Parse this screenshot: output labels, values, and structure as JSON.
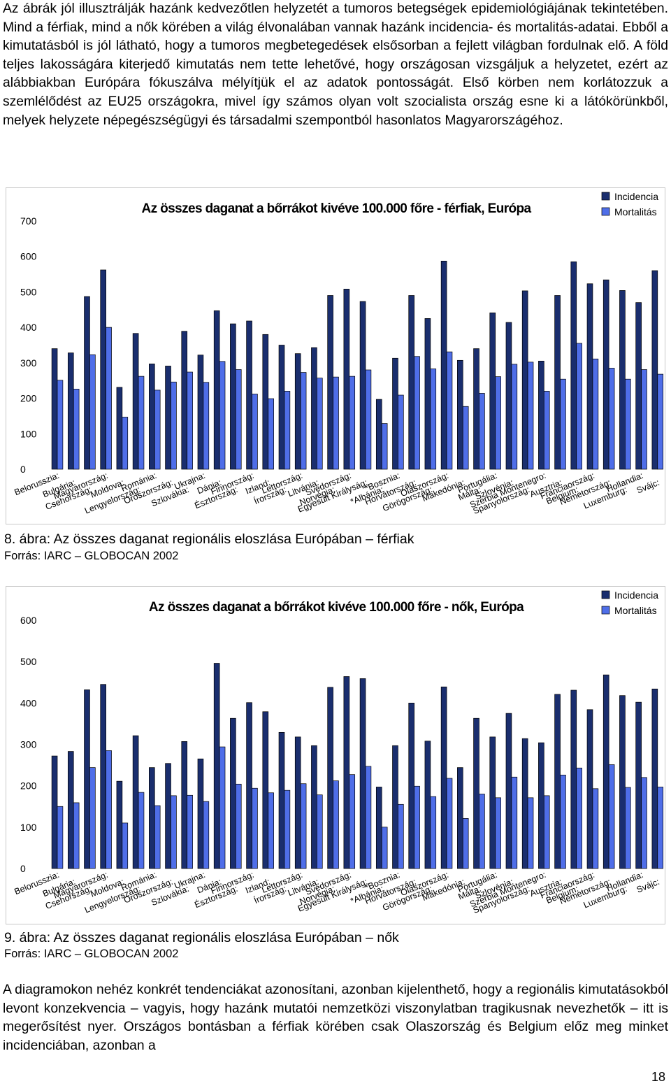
{
  "paragraph_top": "Az ábrák jól illusztrálják hazánk kedvezőtlen helyzetét a tumoros betegségek epidemiológiájának tekintetében. Mind a férfiak, mind a nők körében a világ élvonalában vannak hazánk incidencia- és mortalitás-adatai. Ebből a kimutatásból is jól látható, hogy a tumoros megbetegedések elsősorban a fejlett világban fordulnak elő. A föld teljes lakosságára kiterjedő kimutatás nem tette lehetővé, hogy országosan vizsgáljuk a helyzetet, ezért az alábbiakban Európára fókuszálva mélyítjük el az adatok pontosságát. Első körben nem korlátozzuk a szemlélődést az EU25 országokra, mivel így számos olyan volt szocialista ország esne ki a látókörünkből, melyek helyzete népegészségügyi és társadalmi szempontból hasonlatos Magyarországéhoz.",
  "figure1": {
    "caption": "8. ábra: Az összes daganat regionális eloszlása Európában – férfiak",
    "source": "Forrás: IARC – GLOBOCAN 2002"
  },
  "figure2": {
    "caption": "9. ábra: Az összes daganat regionális eloszlása Európában – nők",
    "source": "Forrás: IARC – GLOBOCAN 2002"
  },
  "paragraph_bottom": "A diagramokon nehéz konkrét tendenciákat azonosítani, azonban kijelenthető, hogy a regionális kimutatásokból levont konzekvencia – vagyis, hogy hazánk mutatói nemzetközi viszonylatban tragikusnak nevezhetők – itt is megerősítést nyer. Országos bontásban a férfiak körében csak Olaszország és Belgium előz meg minket incidenciában, azonban a",
  "page_number": "18",
  "colors": {
    "incidence": "#1a2e6e",
    "mortality": "#4f6ee8"
  },
  "chart_data": [
    {
      "type": "bar",
      "title": "Az összes daganat a bőrrákot kivéve 100.000 főre - férfiak, Európa",
      "categories": [
        "Belorusszia:",
        "Bulgária:",
        "Csehország:",
        "Magyarország:",
        "Moldova:",
        "Lengyelország:",
        "Románia:",
        "Oroszország:",
        "Szlovákia:",
        "Ukrajna:",
        "Dánia:",
        "Észtország:",
        "Finnország:",
        "Izland:",
        "Írország:",
        "Lettország:",
        "Litvánia:",
        "Norvégia:",
        "Svédország:",
        "Egyesült Királyság:",
        "*Albánia:",
        "*Bosznia:",
        "Horvátország:",
        "Görögország:",
        "Olaszország:",
        "Makedónia:",
        "Málta:",
        "Portugália:",
        "Szlovénia:",
        "Spanyolország:",
        "Szerbia Montenegro:",
        "Ausztria:",
        "Belgium:",
        "Franciaország:",
        "Németország:",
        "Luxemburg:",
        "Hollandia:",
        "Svájc:"
      ],
      "series": [
        {
          "name": "Incidencia",
          "values": [
            340,
            328,
            487,
            562,
            231,
            383,
            297,
            291,
            389,
            322,
            447,
            410,
            418,
            380,
            350,
            326,
            343,
            490,
            508,
            473,
            197,
            313,
            490,
            425,
            587,
            307,
            340,
            441,
            414,
            503,
            305,
            490,
            585,
            523,
            534,
            504,
            470,
            560
          ]
        },
        {
          "name": "Mortalitás",
          "values": [
            251,
            226,
            323,
            400,
            147,
            262,
            223,
            246,
            274,
            245,
            304,
            281,
            212,
            199,
            220,
            273,
            257,
            260,
            262,
            280,
            129,
            209,
            318,
            283,
            331,
            177,
            214,
            261,
            296,
            302,
            220,
            254,
            355,
            311,
            285,
            254,
            281,
            268
          ]
        }
      ],
      "ylim": [
        0,
        700
      ],
      "yticks": [
        0,
        100,
        200,
        300,
        400,
        500,
        600,
        700
      ],
      "legend_position": "top-right",
      "grid": false
    },
    {
      "type": "bar",
      "title": "Az összes daganat a bőrrákot kivéve 100.000 főre - nők, Európa",
      "categories": [
        "Belorusszia:",
        "Bulgária:",
        "Csehország:",
        "Magyarország:",
        "Moldova:",
        "Lengyelország:",
        "Románia:",
        "Oroszország:",
        "Szlovákia:",
        "Ukrajna:",
        "Dánia:",
        "Észtország:",
        "Finnország:",
        "Izland:",
        "Írország:",
        "Lettország:",
        "Litvánia:",
        "Norvégia:",
        "Svédország:",
        "Egyesült Királyság:",
        "*Albánia:",
        "*Bosznia:",
        "Horvátország:",
        "Görögország:",
        "Olaszország:",
        "Makedónia:",
        "Málta:",
        "Portugália:",
        "Szlovénia:",
        "Spanyolország:",
        "Szerbia Montenegro:",
        "Ausztria:",
        "Belgium:",
        "Franciaország:",
        "Németország:",
        "Luxemburg:",
        "Hollandia:",
        "Svájc:"
      ],
      "series": [
        {
          "name": "Incidencia",
          "values": [
            272,
            283,
            432,
            445,
            211,
            321,
            244,
            254,
            307,
            265,
            496,
            363,
            401,
            379,
            329,
            318,
            297,
            438,
            464,
            459,
            197,
            297,
            400,
            308,
            439,
            244,
            363,
            318,
            375,
            314,
            304,
            421,
            431,
            384,
            468,
            418,
            402,
            434
          ]
        },
        {
          "name": "Mortalitás",
          "values": [
            150,
            159,
            244,
            285,
            110,
            184,
            152,
            176,
            177,
            162,
            294,
            204,
            194,
            183,
            189,
            205,
            178,
            212,
            227,
            247,
            100,
            155,
            199,
            174,
            218,
            121,
            180,
            171,
            221,
            171,
            176,
            226,
            243,
            193,
            251,
            196,
            220,
            197
          ]
        }
      ],
      "ylim": [
        0,
        600
      ],
      "yticks": [
        0,
        100,
        200,
        300,
        400,
        500,
        600
      ],
      "legend_position": "top-right",
      "grid": false
    }
  ]
}
